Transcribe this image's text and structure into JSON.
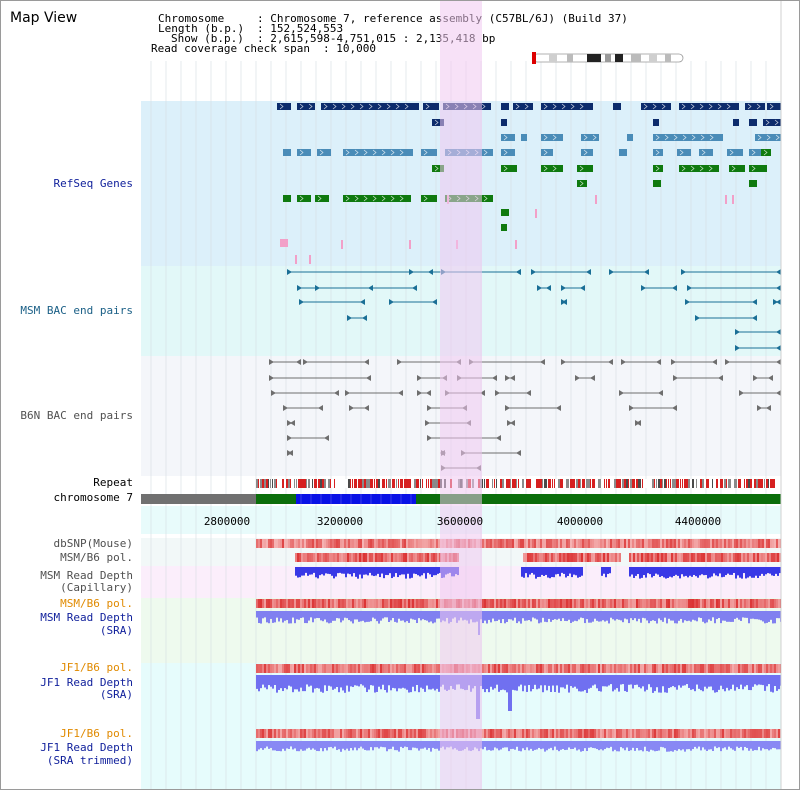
{
  "title": "Map View",
  "header": {
    "chromosome_key": "Chromosome",
    "chromosome_value": ": Chromosome 7, reference assembly (C57BL/6J) (Build 37)",
    "length_key": "Length (b.p.)",
    "length_value": ": 152,524,553",
    "show_key": "Show (b.p.)",
    "show_value": ": 2,615,598-4,751,015 : 2,135,418 bp",
    "coverage_key": "Read coverage check span",
    "coverage_value": ": 10,000"
  },
  "axis": {
    "ticks": [
      "2800000",
      "3200000",
      "3600000",
      "4000000",
      "4400000"
    ]
  },
  "tracks": {
    "refseq": "RefSeq Genes",
    "msm_bac": "MSM BAC end pairs",
    "b6n_bac": "B6N BAC end pairs",
    "repeat": "Repeat",
    "chromosome": "chromosome 7",
    "dbsnp": "dbSNP(Mouse)",
    "msm_b6_pol_1": "MSM/B6 pol.",
    "msm_depth_cap_1": "MSM Read Depth",
    "msm_depth_cap_2": "(Capillary)",
    "msm_b6_pol_2": "MSM/B6 pol.",
    "msm_depth_sra_1": "MSM Read Depth",
    "msm_depth_sra_2": "(SRA)",
    "jf1_b6_pol_1": "JF1/B6 pol.",
    "jf1_depth_sra_1": "JF1 Read Depth",
    "jf1_depth_sra_2": "(SRA)",
    "jf1_b6_pol_2": "JF1/B6 pol.",
    "jf1_depth_trim_1": "JF1 Read Depth",
    "jf1_depth_trim_2": "(SRA trimmed)"
  },
  "colors": {
    "refseq_bg": "#dcf0fa",
    "msm_bac_bg": "#e2f8f8",
    "b6n_bac_bg": "#f4f6fa",
    "highlight": "#f5d8f5",
    "gene_navy": "#0d2c6c",
    "gene_steel": "#4a8cb8",
    "gene_green": "#0f7a0f",
    "chrom_gray": "#707070",
    "chrom_blue": "#0a12e6",
    "chrom_green": "#0b6e0b"
  }
}
